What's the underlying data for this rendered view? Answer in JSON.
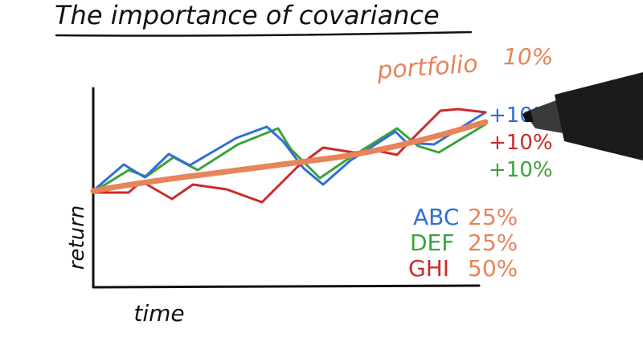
{
  "title": "The importance of covariance",
  "axes": {
    "x_label": "time",
    "y_label": "return"
  },
  "portfolio": {
    "label": "portfolio",
    "value": "10%",
    "color": "#e8835a"
  },
  "series_labels": [
    {
      "name": "blue",
      "text": "+10%",
      "color": "#2f6fd6"
    },
    {
      "name": "red",
      "text": "+10%",
      "color": "#cc2a2a"
    },
    {
      "name": "green",
      "text": "+10%",
      "color": "#3aa33a"
    }
  ],
  "allocations": [
    {
      "ticker": "ABC",
      "weight": "25%",
      "ticker_color": "#2f6fd6"
    },
    {
      "ticker": "DEF",
      "weight": "25%",
      "ticker_color": "#3aa33a"
    },
    {
      "ticker": "GHI",
      "weight": "50%",
      "ticker_color": "#cc2a2a"
    }
  ],
  "weight_color": "#e8835a",
  "ink_color": "#111111",
  "icons": {
    "pen": "marker-pen-icon"
  }
}
